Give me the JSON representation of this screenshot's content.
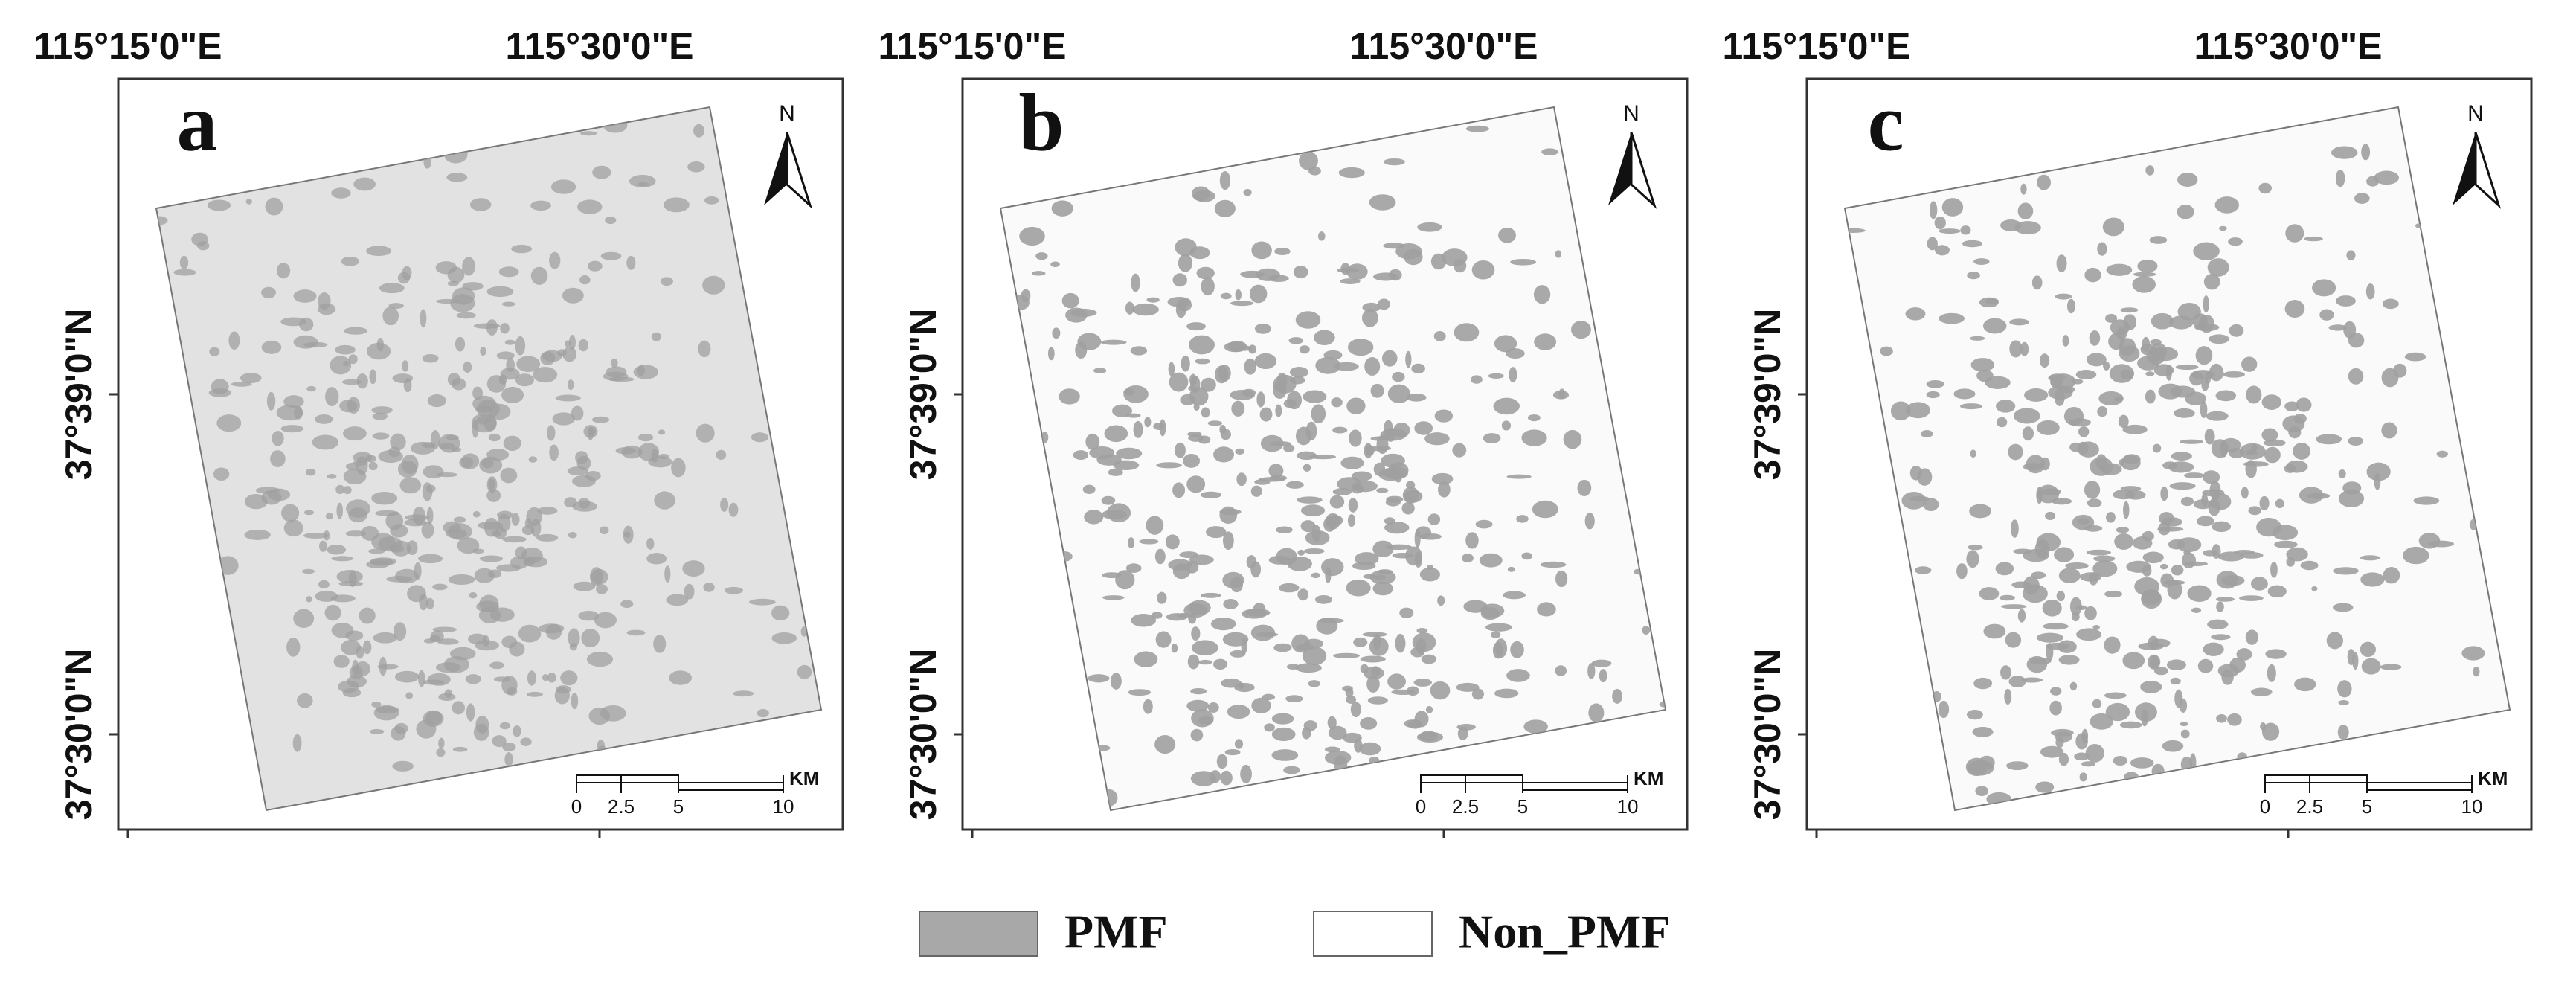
{
  "panels": [
    {
      "label": "a",
      "x_labels": [
        "115°15'0\"E",
        "115°30'0\"E"
      ],
      "y_labels": [
        "37°39'0\"N",
        "37°30'0\"N"
      ],
      "north": "N",
      "scale_labels": [
        "0",
        "2.5",
        "5",
        "10"
      ],
      "scale_unit": "KM"
    },
    {
      "label": "b",
      "x_labels": [
        "115°15'0\"E",
        "115°30'0\"E"
      ],
      "y_labels": [
        "37°39'0\"N",
        "37°30'0\"N"
      ],
      "north": "N",
      "scale_labels": [
        "0",
        "2.5",
        "5",
        "10"
      ],
      "scale_unit": "KM"
    },
    {
      "label": "c",
      "x_labels": [
        "115°15'0\"E",
        "115°30'0\"E"
      ],
      "y_labels": [
        "37°39'0\"N",
        "37°30'0\"N"
      ],
      "north": "N",
      "scale_labels": [
        "0",
        "2.5",
        "5",
        "10"
      ],
      "scale_unit": "KM"
    }
  ],
  "legend": [
    {
      "label": "PMF"
    },
    {
      "label": "Non_PMF"
    }
  ]
}
